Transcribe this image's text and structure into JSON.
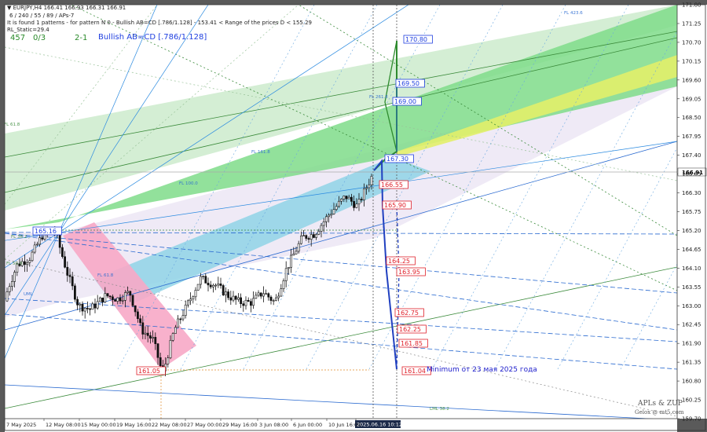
{
  "header": {
    "symbol_line": "▼ EURJPY,H4  166.41 166.93 166.31 166.91",
    "params_line": "6 / 240 / 55 / 89 / APs-7",
    "pattern_line": "It is found 1 patterns  -  for pattern N 0 - Bullish AB=CD [.786/1.128]  - 153.41 < Range of the prices D < 155.29",
    "rl_line": "RL_Static=29.4",
    "stat_a": "457",
    "stat_b": "0/3",
    "stat_c": "2-1",
    "pattern_name": "Bullish AB=CD [.786/1.128]"
  },
  "watermark": {
    "line1": "APLs & ZUP",
    "line2": "Gelox @ mt5.com"
  },
  "annotation": "Minimum от 23 мая 2025 года",
  "colors": {
    "background": "#ffffff",
    "green_band": "#7fdc8a",
    "blue_band": "#8fd3e6",
    "pink_band": "#f7a8c6",
    "lavender_band": "#ece6f4",
    "yellow_band": "#e2f06a",
    "forecast_green": "#2e8b2e",
    "forecast_blue": "#2040c0",
    "label_red": "#e0202a",
    "label_blue": "#2040e0"
  },
  "chart_data": {
    "type": "candlestick",
    "symbol": "EURJPY",
    "timeframe": "H4",
    "ylim": [
      159.7,
      171.8
    ],
    "y_ticks": [
      159.7,
      160.25,
      160.8,
      161.35,
      161.9,
      162.45,
      163.0,
      163.55,
      164.1,
      164.65,
      165.2,
      165.75,
      166.3,
      166.85,
      167.4,
      167.95,
      168.5,
      169.05,
      169.6,
      170.15,
      170.7,
      171.25,
      171.8
    ],
    "y_tick_labels": [
      "159.70",
      "160.25",
      "160.80",
      "161.35",
      "161.90",
      "162.45",
      "163.00",
      "163.55",
      "164.10",
      "164.65",
      "165.20",
      "165.75",
      "166.30",
      "166.85",
      "167.40",
      "167.95",
      "168.50",
      "169.05",
      "169.60",
      "170.15",
      "170.70",
      "171.25",
      "171.80"
    ],
    "current_price": 166.91,
    "current_price_label": "166.91",
    "x_tick_labels": [
      "7 May 2025",
      "12 May 08:00",
      "15 May 00:00",
      "19 May 16:00",
      "22 May 08:00",
      "27 May 00:00",
      "29 May 16:00",
      "3 Jun 08:00",
      "6 Jun 00:00",
      "10 Jun 16:00",
      "2025.06.16 10:12"
    ],
    "price_path_anchors": [
      [
        0,
        162.6
      ],
      [
        10,
        163.5
      ],
      [
        22,
        164.2
      ],
      [
        38,
        164.4
      ],
      [
        55,
        165.1
      ],
      [
        70,
        165.2
      ],
      [
        85,
        164.0
      ],
      [
        100,
        163.0
      ],
      [
        115,
        162.9
      ],
      [
        135,
        163.3
      ],
      [
        150,
        163.2
      ],
      [
        165,
        163.4
      ],
      [
        180,
        162.3
      ],
      [
        195,
        162.0
      ],
      [
        207,
        161.0
      ],
      [
        222,
        162.3
      ],
      [
        238,
        163.0
      ],
      [
        255,
        163.8
      ],
      [
        275,
        163.6
      ],
      [
        290,
        163.3
      ],
      [
        305,
        163.1
      ],
      [
        320,
        163.1
      ],
      [
        335,
        163.4
      ],
      [
        350,
        163.1
      ],
      [
        365,
        164.1
      ],
      [
        385,
        165.0
      ],
      [
        400,
        165.1
      ],
      [
        420,
        165.7
      ],
      [
        440,
        166.2
      ],
      [
        455,
        165.9
      ],
      [
        465,
        166.4
      ],
      [
        476,
        166.9
      ]
    ],
    "price_levels": [
      {
        "label": "170.80",
        "value": 170.8
      },
      {
        "label": "169.50",
        "value": 169.5
      },
      {
        "label": "169.00",
        "value": 169.0
      },
      {
        "label": "167.30",
        "value": 167.3
      },
      {
        "label": "166.55",
        "value": 166.55
      },
      {
        "label": "165.90",
        "value": 165.9
      },
      {
        "label": "165.16",
        "value": 165.16
      },
      {
        "label": "164.25",
        "value": 164.25
      },
      {
        "label": "163.95",
        "value": 163.95
      },
      {
        "label": "162.75",
        "value": 162.75
      },
      {
        "label": "162.25",
        "value": 162.25
      },
      {
        "label": "161.85",
        "value": 161.85
      },
      {
        "label": "161.04",
        "value": 161.04
      },
      {
        "label": "161.05",
        "value": 161.05
      }
    ],
    "fib_labels": [
      "FL 61.8",
      "FL 38.2",
      "FL 50.0",
      "FL 61.8",
      "FL 100.0",
      "FL 161.8",
      "FL 261.8",
      "FL 423.6",
      "UML",
      "LML 38.2"
    ]
  }
}
